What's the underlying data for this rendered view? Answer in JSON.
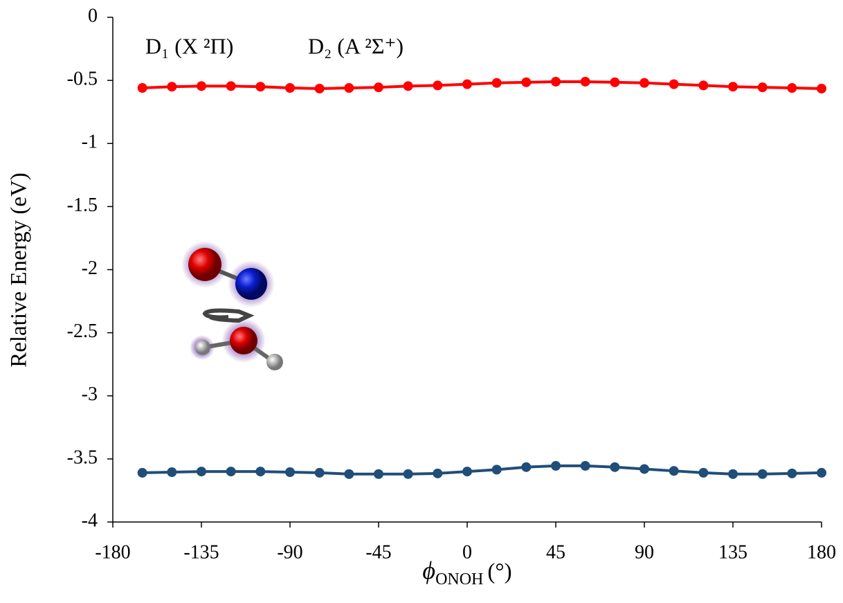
{
  "chart_data": {
    "type": "line",
    "x_label": {
      "symbol": "ϕ",
      "subscript": "ONOH",
      "unit": "(°)"
    },
    "y_label": "Relative Energy (eV)",
    "x": [
      -165,
      -150,
      -135,
      -120,
      -105,
      -90,
      -75,
      -60,
      -45,
      -30,
      -15,
      0,
      15,
      30,
      45,
      60,
      75,
      90,
      105,
      120,
      135,
      150,
      165,
      180
    ],
    "series": [
      {
        "name": "D₁ (X ²Π)",
        "color": "#1f4e79",
        "values": [
          -3.61,
          -3.605,
          -3.6,
          -3.6,
          -3.6,
          -3.605,
          -3.61,
          -3.62,
          -3.62,
          -3.62,
          -3.615,
          -3.6,
          -3.585,
          -3.565,
          -3.555,
          -3.555,
          -3.565,
          -3.58,
          -3.595,
          -3.61,
          -3.62,
          -3.62,
          -3.615,
          -3.61
        ]
      },
      {
        "name": "D₂ (A ²Σ⁺)",
        "color": "#ff0000",
        "values": [
          -0.56,
          -0.55,
          -0.545,
          -0.545,
          -0.55,
          -0.56,
          -0.565,
          -0.56,
          -0.555,
          -0.545,
          -0.54,
          -0.53,
          -0.52,
          -0.515,
          -0.51,
          -0.51,
          -0.515,
          -0.52,
          -0.53,
          -0.54,
          -0.55,
          -0.555,
          -0.56,
          -0.565
        ]
      }
    ],
    "xlim": [
      -180,
      180
    ],
    "xticks": [
      -180,
      -135,
      -90,
      -45,
      0,
      45,
      90,
      135,
      180
    ],
    "ylim": [
      -4,
      0
    ],
    "yticks": [
      0,
      -0.5,
      -1,
      -1.5,
      -2,
      -2.5,
      -3,
      -3.5,
      -4
    ],
    "grid": false
  }
}
